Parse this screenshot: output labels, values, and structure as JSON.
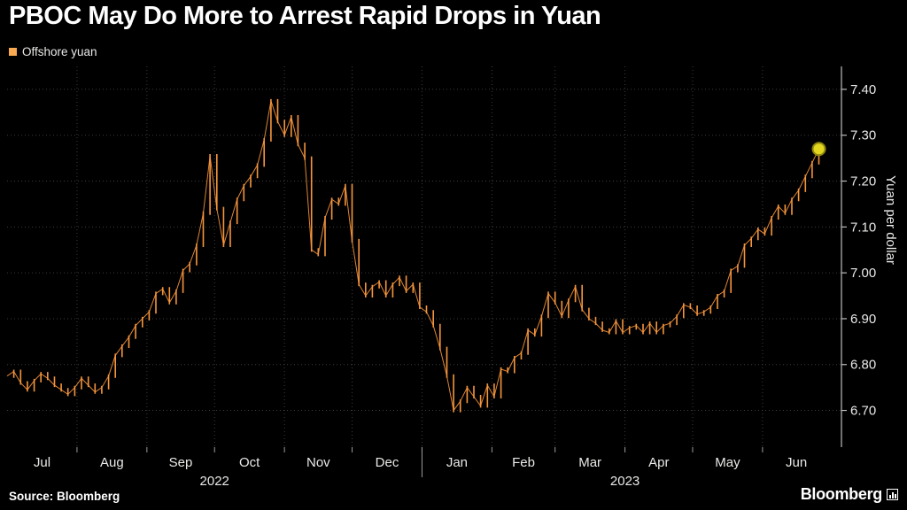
{
  "header": {
    "title": "PBOC May Do More to Arrest Rapid Drops in Yuan"
  },
  "legend": {
    "label": "Offshore yuan",
    "swatch_color": "#F9A94F"
  },
  "footer": {
    "source": "Source: Bloomberg",
    "brand": "Bloomberg"
  },
  "colors": {
    "background": "#000000",
    "series": "#F6953C",
    "legend_swatch": "#F9A94F",
    "grid": "#3c3c3c",
    "axis": "#bdbdbd",
    "tick_text": "#e9e9e7",
    "marker_fill": "#E2D51F",
    "marker_stroke": "#8e860f"
  },
  "chart_data": {
    "type": "line",
    "title": "PBOC May Do More to Arrest Rapid Drops in Yuan",
    "xlabel": "",
    "ylabel": "Yuan per dollar",
    "ylim": [
      6.62,
      7.45
    ],
    "yticks": [
      6.7,
      6.8,
      6.9,
      7.0,
      7.1,
      7.2,
      7.3,
      7.4
    ],
    "grid": "dotted",
    "legend_position": "top-left",
    "x_start_date": "2022-07-01",
    "x_step_days": 3,
    "x_total_days": 370,
    "month_labels": [
      "Jul",
      "Aug",
      "Sep",
      "Oct",
      "Nov",
      "Dec",
      "Jan",
      "Feb",
      "Mar",
      "Apr",
      "May",
      "Jun"
    ],
    "month_start_days": [
      0,
      31,
      62,
      92,
      123,
      153,
      184,
      215,
      243,
      274,
      304,
      335,
      365
    ],
    "year_labels": [
      {
        "label": "2022",
        "center_day": 92
      },
      {
        "label": "2023",
        "center_day": 274
      }
    ],
    "year_divider_day": 184,
    "series": [
      {
        "name": "Offshore yuan",
        "color": "#F6953C",
        "values": [
          6.775,
          6.785,
          6.76,
          6.745,
          6.765,
          6.78,
          6.77,
          6.755,
          6.745,
          6.735,
          6.75,
          6.77,
          6.755,
          6.74,
          6.75,
          6.775,
          6.82,
          6.84,
          6.86,
          6.885,
          6.9,
          6.915,
          6.955,
          6.965,
          6.935,
          6.96,
          7.005,
          7.02,
          7.06,
          7.13,
          7.255,
          7.14,
          7.06,
          7.11,
          7.16,
          7.19,
          7.21,
          7.235,
          7.29,
          7.375,
          7.33,
          7.3,
          7.34,
          7.28,
          7.25,
          7.05,
          7.04,
          7.12,
          7.16,
          7.15,
          7.19,
          7.07,
          6.975,
          6.95,
          6.97,
          6.98,
          6.95,
          6.975,
          6.99,
          6.96,
          6.975,
          6.925,
          6.915,
          6.885,
          6.835,
          6.775,
          6.7,
          6.72,
          6.75,
          6.73,
          6.71,
          6.755,
          6.73,
          6.79,
          6.785,
          6.815,
          6.825,
          6.875,
          6.865,
          6.905,
          6.955,
          6.935,
          6.905,
          6.94,
          6.97,
          6.92,
          6.9,
          6.89,
          6.875,
          6.87,
          6.895,
          6.87,
          6.88,
          6.885,
          6.87,
          6.89,
          6.87,
          6.885,
          6.89,
          6.905,
          6.93,
          6.925,
          6.91,
          6.915,
          6.925,
          6.95,
          6.96,
          7.005,
          7.015,
          7.06,
          7.075,
          7.095,
          7.085,
          7.12,
          7.145,
          7.13,
          7.16,
          7.18,
          7.21,
          7.24,
          7.27
        ]
      }
    ],
    "last_point_marker": {
      "value": 7.27,
      "color": "#E2D51F"
    }
  }
}
